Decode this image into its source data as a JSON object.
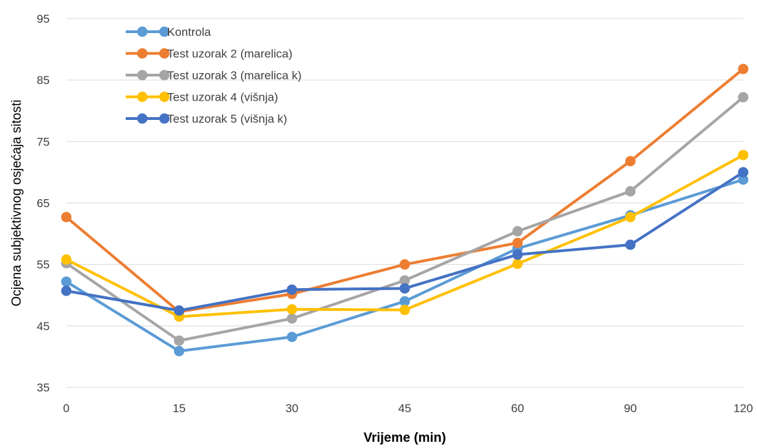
{
  "chart_data": {
    "type": "line",
    "title": "",
    "xlabel": "Vrijeme (min)",
    "ylabel": "Ocjena subjektivnog osjećaja sitosti",
    "categories": [
      "0",
      "15",
      "30",
      "45",
      "60",
      "90",
      "120"
    ],
    "ylim": [
      35,
      95
    ],
    "yticks": [
      35,
      45,
      55,
      65,
      75,
      85,
      95
    ],
    "grid": true,
    "legend_position": "top-left",
    "series": [
      {
        "name": "Kontrola",
        "color": "#5B9BD5",
        "values": [
          52.2,
          40.9,
          43.2,
          49.0,
          57.6,
          63.0,
          68.8
        ]
      },
      {
        "name": "Test uzorak 2 (marelica)",
        "color": "#ED7D31",
        "values": [
          62.7,
          47.3,
          50.2,
          55.0,
          58.5,
          71.8,
          86.8
        ]
      },
      {
        "name": "Test uzorak 3 (marelica k)",
        "color": "#A5A5A5",
        "values": [
          55.2,
          42.6,
          46.2,
          52.4,
          60.4,
          66.9,
          82.2
        ]
      },
      {
        "name": "Test uzorak 4 (višnja)",
        "color": "#FFC000",
        "values": [
          55.8,
          46.5,
          47.7,
          47.6,
          55.1,
          62.7,
          72.8
        ]
      },
      {
        "name": "Test uzorak 5 (višnja k)",
        "color": "#4472C4",
        "values": [
          50.7,
          47.5,
          50.9,
          51.1,
          56.6,
          58.2,
          70.0
        ]
      }
    ]
  }
}
